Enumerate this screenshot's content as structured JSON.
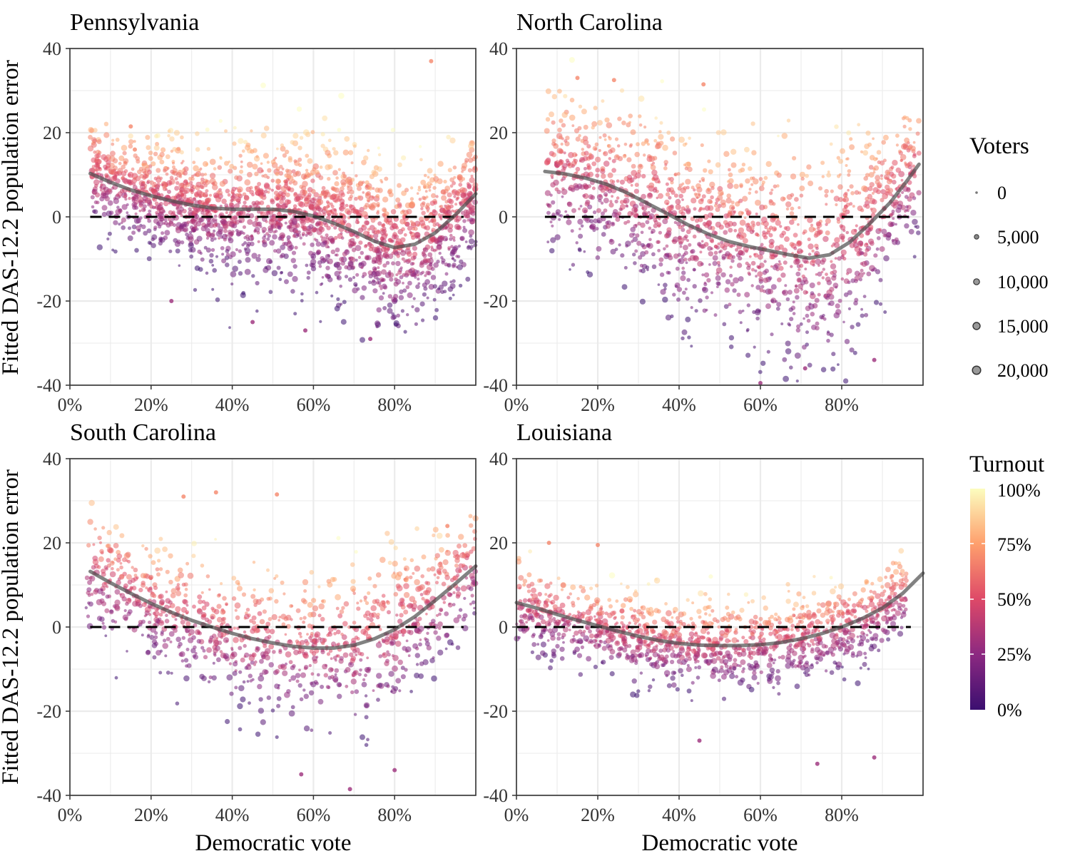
{
  "figure": {
    "ylabel": "Fitted DAS-12.2 population error",
    "xlabel": "Democratic vote"
  },
  "legend": {
    "size": {
      "title": "Voters",
      "labels": [
        "0",
        "5,000",
        "10,000",
        "15,000",
        "20,000"
      ]
    },
    "color": {
      "title": "Turnout",
      "labels": [
        "100%",
        "75%",
        "50%",
        "25%",
        "0%"
      ]
    }
  },
  "chart_data": [
    {
      "type": "scatter",
      "title": "Pennsylvania",
      "xlabel": "Democratic vote",
      "ylabel": "Fitted DAS-12.2 population error",
      "xlim": [
        0,
        1
      ],
      "ylim": [
        -40,
        40
      ],
      "xticks": [
        "0%",
        "20%",
        "40%",
        "60%",
        "80%"
      ],
      "yticks": [
        "40",
        "20",
        "0",
        "-20",
        "-40"
      ],
      "grid": true,
      "reference_line": {
        "y": 0,
        "style": "dashed"
      },
      "smooth": [
        [
          0.05,
          10.3
        ],
        [
          0.1,
          8.2
        ],
        [
          0.15,
          6.4
        ],
        [
          0.2,
          5
        ],
        [
          0.25,
          3.8
        ],
        [
          0.3,
          2.8
        ],
        [
          0.35,
          2.1
        ],
        [
          0.4,
          1.8
        ],
        [
          0.45,
          1.8
        ],
        [
          0.5,
          1.8
        ],
        [
          0.55,
          1.3
        ],
        [
          0.6,
          0.2
        ],
        [
          0.65,
          -1.5
        ],
        [
          0.7,
          -3.5
        ],
        [
          0.75,
          -5.8
        ],
        [
          0.8,
          -7.3
        ],
        [
          0.85,
          -6.5
        ],
        [
          0.9,
          -3.8
        ],
        [
          0.95,
          0.5
        ],
        [
          1.0,
          5.5
        ]
      ],
      "point_cloud": {
        "approx_points": 2200,
        "x_range": [
          0.05,
          1.0
        ],
        "spread_by_x": [
          [
            0.2,
            6
          ],
          [
            0.5,
            8
          ],
          [
            0.8,
            9
          ],
          [
            1.0,
            7
          ]
        ],
        "outliers": [
          [
            0.15,
            21.5
          ],
          [
            0.16,
            16
          ],
          [
            0.89,
            37
          ],
          [
            0.25,
            -20
          ],
          [
            0.45,
            -25
          ],
          [
            0.58,
            -27
          ],
          [
            0.74,
            -29
          ]
        ]
      }
    },
    {
      "type": "scatter",
      "title": "North Carolina",
      "xlabel": "Democratic vote",
      "ylabel": "Fitted DAS-12.2 population error",
      "xlim": [
        0,
        1
      ],
      "ylim": [
        -40,
        40
      ],
      "xticks": [
        "0%",
        "20%",
        "40%",
        "60%",
        "80%"
      ],
      "yticks": [
        "40",
        "20",
        "0",
        "-20",
        "-40"
      ],
      "grid": true,
      "reference_line": {
        "y": 0,
        "style": "dashed"
      },
      "smooth": [
        [
          0.07,
          10.8
        ],
        [
          0.12,
          10.2
        ],
        [
          0.17,
          9.2
        ],
        [
          0.22,
          7.8
        ],
        [
          0.27,
          5.8
        ],
        [
          0.32,
          3.3
        ],
        [
          0.37,
          0.8
        ],
        [
          0.42,
          -1.8
        ],
        [
          0.47,
          -4
        ],
        [
          0.52,
          -5.8
        ],
        [
          0.57,
          -7
        ],
        [
          0.62,
          -8
        ],
        [
          0.67,
          -9
        ],
        [
          0.72,
          -9.8
        ],
        [
          0.77,
          -9
        ],
        [
          0.82,
          -6
        ],
        [
          0.87,
          -1.5
        ],
        [
          0.92,
          3.5
        ],
        [
          0.96,
          8.5
        ],
        [
          0.99,
          12.5
        ]
      ],
      "point_cloud": {
        "approx_points": 1500,
        "x_range": [
          0.07,
          0.99
        ],
        "spread_by_x": [
          [
            0.2,
            9
          ],
          [
            0.5,
            11
          ],
          [
            0.8,
            12
          ],
          [
            1.0,
            7
          ]
        ],
        "outliers": [
          [
            0.15,
            33
          ],
          [
            0.24,
            32.5
          ],
          [
            0.46,
            31.5
          ],
          [
            0.6,
            -39.5
          ],
          [
            0.71,
            -36
          ],
          [
            0.88,
            -34
          ]
        ]
      }
    },
    {
      "type": "scatter",
      "title": "South Carolina",
      "xlabel": "Democratic vote",
      "ylabel": "Fitted DAS-12.2 population error",
      "xlim": [
        0,
        1
      ],
      "ylim": [
        -40,
        40
      ],
      "xticks": [
        "0%",
        "20%",
        "40%",
        "60%",
        "80%"
      ],
      "yticks": [
        "40",
        "20",
        "0",
        "-20",
        "-40"
      ],
      "grid": true,
      "reference_line": {
        "y": 0,
        "style": "dashed"
      },
      "smooth": [
        [
          0.05,
          13.2
        ],
        [
          0.1,
          10.5
        ],
        [
          0.15,
          8
        ],
        [
          0.2,
          5.6
        ],
        [
          0.25,
          3.5
        ],
        [
          0.3,
          1.6
        ],
        [
          0.35,
          0
        ],
        [
          0.4,
          -1.5
        ],
        [
          0.45,
          -2.8
        ],
        [
          0.5,
          -3.8
        ],
        [
          0.55,
          -4.6
        ],
        [
          0.6,
          -5
        ],
        [
          0.65,
          -5
        ],
        [
          0.7,
          -4.3
        ],
        [
          0.75,
          -2.8
        ],
        [
          0.8,
          -0.6
        ],
        [
          0.85,
          2.5
        ],
        [
          0.9,
          6.3
        ],
        [
          0.95,
          10.3
        ],
        [
          1.0,
          14.5
        ]
      ],
      "point_cloud": {
        "approx_points": 1100,
        "x_range": [
          0.04,
          1.0
        ],
        "spread_by_x": [
          [
            0.2,
            7
          ],
          [
            0.5,
            8
          ],
          [
            0.8,
            9
          ],
          [
            1.0,
            6
          ]
        ],
        "outliers": [
          [
            0.28,
            31
          ],
          [
            0.36,
            32
          ],
          [
            0.51,
            31.5
          ],
          [
            0.93,
            24
          ],
          [
            0.57,
            -35
          ],
          [
            0.69,
            -38.5
          ],
          [
            0.8,
            -34
          ]
        ]
      }
    },
    {
      "type": "scatter",
      "title": "Louisiana",
      "xlabel": "Democratic vote",
      "ylabel": "Fitted DAS-12.2 population error",
      "xlim": [
        0,
        1
      ],
      "ylim": [
        -40,
        40
      ],
      "xticks": [
        "0%",
        "20%",
        "40%",
        "60%",
        "80%"
      ],
      "yticks": [
        "40",
        "20",
        "0",
        "-20",
        "-40"
      ],
      "grid": true,
      "reference_line": {
        "y": 0,
        "style": "dashed"
      },
      "smooth": [
        [
          0.0,
          5.8
        ],
        [
          0.05,
          4.5
        ],
        [
          0.1,
          3
        ],
        [
          0.15,
          1.6
        ],
        [
          0.2,
          0.3
        ],
        [
          0.25,
          -1
        ],
        [
          0.3,
          -2.2
        ],
        [
          0.35,
          -3.2
        ],
        [
          0.4,
          -3.9
        ],
        [
          0.45,
          -4.3
        ],
        [
          0.5,
          -4.4
        ],
        [
          0.55,
          -4.4
        ],
        [
          0.6,
          -4.2
        ],
        [
          0.65,
          -3.7
        ],
        [
          0.7,
          -2.8
        ],
        [
          0.75,
          -1.6
        ],
        [
          0.8,
          0
        ],
        [
          0.85,
          2
        ],
        [
          0.9,
          4.5
        ],
        [
          0.95,
          8
        ],
        [
          1.0,
          12.8
        ]
      ],
      "point_cloud": {
        "approx_points": 1300,
        "x_range": [
          0.0,
          0.96
        ],
        "spread_by_x": [
          [
            0.2,
            5
          ],
          [
            0.5,
            5
          ],
          [
            0.8,
            5
          ],
          [
            1.0,
            4
          ]
        ],
        "outliers": [
          [
            0.08,
            20
          ],
          [
            0.2,
            19.5
          ],
          [
            0.45,
            -27
          ],
          [
            0.88,
            -31
          ],
          [
            0.74,
            -32.5
          ]
        ]
      }
    }
  ]
}
